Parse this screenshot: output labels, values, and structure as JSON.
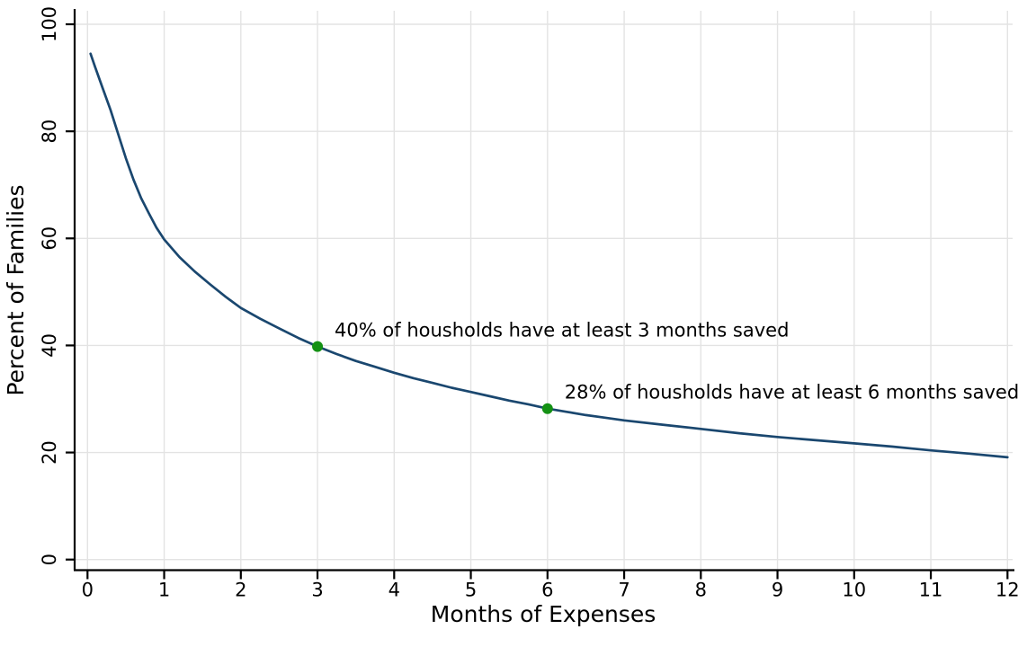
{
  "chart_data": {
    "type": "line",
    "title": "",
    "xlabel": "Months of Expenses",
    "ylabel": "Percent of Families",
    "xlim": [
      0,
      12
    ],
    "ylim": [
      0,
      100
    ],
    "x_ticks": [
      0,
      1,
      2,
      3,
      4,
      5,
      6,
      7,
      8,
      9,
      10,
      11,
      12
    ],
    "y_ticks": [
      0,
      20,
      40,
      60,
      80,
      100
    ],
    "grid": true,
    "legend": "none",
    "colors": {
      "line": "#1a476f",
      "marker": "#149114",
      "grid": "#e3e3e3",
      "axis": "#000000",
      "background": "#ffffff"
    },
    "series": [
      {
        "name": "percent-of-families-with-at-least-x-months-saved",
        "points": [
          [
            0.04,
            94.5
          ],
          [
            0.1,
            92
          ],
          [
            0.2,
            88
          ],
          [
            0.3,
            84
          ],
          [
            0.4,
            79.5
          ],
          [
            0.5,
            75
          ],
          [
            0.6,
            71
          ],
          [
            0.7,
            67.5
          ],
          [
            0.8,
            64.7
          ],
          [
            0.9,
            62
          ],
          [
            1,
            59.8
          ],
          [
            1.2,
            56.5
          ],
          [
            1.4,
            53.8
          ],
          [
            1.6,
            51.4
          ],
          [
            1.8,
            49.1
          ],
          [
            2,
            47
          ],
          [
            2.25,
            45
          ],
          [
            2.5,
            43.2
          ],
          [
            2.75,
            41.4
          ],
          [
            3,
            39.8
          ],
          [
            3.25,
            38.4
          ],
          [
            3.5,
            37.1
          ],
          [
            3.75,
            36
          ],
          [
            4,
            34.9
          ],
          [
            4.25,
            33.9
          ],
          [
            4.5,
            33
          ],
          [
            4.75,
            32.1
          ],
          [
            5,
            31.3
          ],
          [
            5.25,
            30.5
          ],
          [
            5.5,
            29.7
          ],
          [
            5.75,
            29
          ],
          [
            6,
            28.2
          ],
          [
            6.25,
            27.6
          ],
          [
            6.5,
            27
          ],
          [
            6.75,
            26.5
          ],
          [
            7,
            26
          ],
          [
            7.5,
            25.2
          ],
          [
            8,
            24.4
          ],
          [
            8.5,
            23.6
          ],
          [
            9,
            22.9
          ],
          [
            9.5,
            22.3
          ],
          [
            10,
            21.7
          ],
          [
            10.5,
            21.1
          ],
          [
            11,
            20.4
          ],
          [
            11.5,
            19.8
          ],
          [
            12,
            19.1
          ]
        ]
      }
    ],
    "markers": [
      {
        "x": 3,
        "y": 39.8
      },
      {
        "x": 6,
        "y": 28.2
      }
    ],
    "annotations": [
      {
        "x": 3,
        "y": 39.8,
        "text": "40% of housholds have at least 3 months saved"
      },
      {
        "x": 6,
        "y": 28.2,
        "text": "28% of housholds have at least 6 months saved"
      }
    ]
  }
}
